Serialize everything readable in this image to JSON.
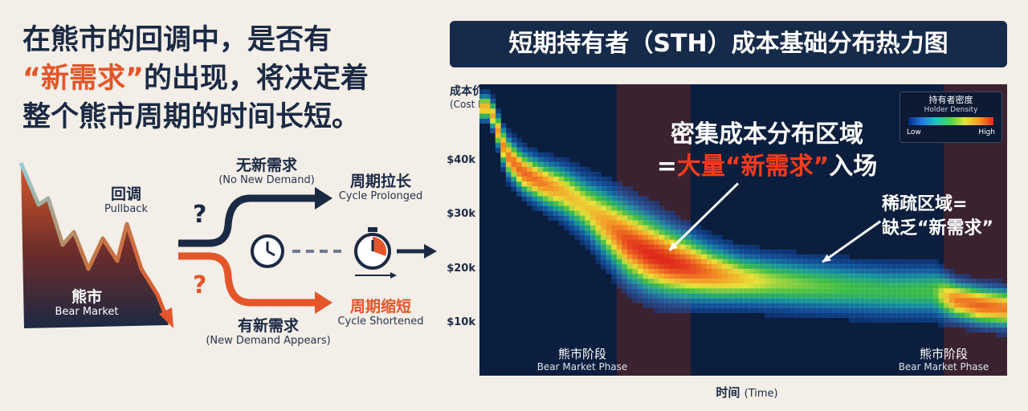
{
  "headline": {
    "line1": "在熊市的回调中，是否有",
    "line2_quote": "“新需求”",
    "line2_rest": "的出现，将决定着",
    "line3": "整个熊市周期的时间长短。"
  },
  "diagram": {
    "pullback_zh": "回调",
    "pullback_en": "Pullback",
    "bear_zh": "熊市",
    "bear_en": "Bear Market",
    "no_demand_zh": "无新需求",
    "no_demand_en": "(No New Demand)",
    "prolonged_zh": "周期拉长",
    "prolonged_en": "Cycle Prolonged",
    "new_demand_zh": "有新需求",
    "new_demand_en": "(New Demand Appears)",
    "shortened_zh": "周期缩短",
    "shortened_en": "Cycle Shortened",
    "question_mark": "?",
    "colors": {
      "navy": "#1b2a44",
      "orange": "#e4552a"
    },
    "icons": [
      "clock-icon",
      "stopwatch-icon"
    ]
  },
  "chart_data": {
    "type": "heatmap",
    "title": "短期持有者（STH）成本基础分布热力图",
    "ylabel_zh": "成本价格",
    "ylabel_en": "(Cost Price)",
    "xlabel_zh": "时间",
    "xlabel_en": "(Time)",
    "y_ticks": [
      "$40k",
      "$30k",
      "$20k",
      "$10k"
    ],
    "y_tick_values": [
      40000,
      30000,
      20000,
      10000
    ],
    "ylim": [
      0,
      50000
    ],
    "x_range": [
      0,
      100
    ],
    "legend": {
      "title_zh": "持有者密度",
      "title_en": "Holder Density",
      "low": "Low",
      "high": "High",
      "position": "top-right"
    },
    "phases": [
      {
        "label_zh": "熊市阶段",
        "label_en": "Bear Market Phase",
        "start": 26,
        "end": 40
      },
      {
        "label_zh": "熊市阶段",
        "label_en": "Bear Market Phase",
        "start": 88,
        "end": 100
      }
    ],
    "density_ridge": [
      {
        "x": 2,
        "center": 46000,
        "spread": 2000,
        "peak": 0.75
      },
      {
        "x": 5,
        "center": 38000,
        "spread": 3000,
        "peak": 0.85
      },
      {
        "x": 8,
        "center": 35000,
        "spread": 3200,
        "peak": 0.9
      },
      {
        "x": 12,
        "center": 33000,
        "spread": 3500,
        "peak": 0.85
      },
      {
        "x": 16,
        "center": 31500,
        "spread": 4000,
        "peak": 0.75
      },
      {
        "x": 20,
        "center": 29000,
        "spread": 4500,
        "peak": 0.7
      },
      {
        "x": 24,
        "center": 26000,
        "spread": 5500,
        "peak": 0.8
      },
      {
        "x": 28,
        "center": 23000,
        "spread": 6000,
        "peak": 0.95
      },
      {
        "x": 32,
        "center": 21000,
        "spread": 6000,
        "peak": 1.0
      },
      {
        "x": 36,
        "center": 19500,
        "spread": 5500,
        "peak": 1.0
      },
      {
        "x": 40,
        "center": 18500,
        "spread": 5000,
        "peak": 0.95
      },
      {
        "x": 44,
        "center": 17500,
        "spread": 4500,
        "peak": 0.85
      },
      {
        "x": 50,
        "center": 16500,
        "spread": 4000,
        "peak": 0.7
      },
      {
        "x": 56,
        "center": 16000,
        "spread": 4000,
        "peak": 0.6
      },
      {
        "x": 62,
        "center": 15500,
        "spread": 4000,
        "peak": 0.55
      },
      {
        "x": 70,
        "center": 15000,
        "spread": 4000,
        "peak": 0.5
      },
      {
        "x": 78,
        "center": 14500,
        "spread": 4000,
        "peak": 0.48
      },
      {
        "x": 86,
        "center": 14500,
        "spread": 4000,
        "peak": 0.5
      },
      {
        "x": 90,
        "center": 13000,
        "spread": 3000,
        "peak": 0.85
      },
      {
        "x": 95,
        "center": 12000,
        "spread": 3000,
        "peak": 0.9
      },
      {
        "x": 100,
        "center": 11500,
        "spread": 3000,
        "peak": 0.85
      }
    ],
    "annotations": {
      "dense_zh_line1": "密集成本分布区域",
      "dense_prefix": "=",
      "dense_red": "大量“新需求”",
      "dense_suffix": "入场",
      "sparse_line1": "稀疏区域=",
      "sparse_line2": "缺乏“新需求”"
    },
    "colors": {
      "background": "#0b1e3d",
      "phase_band": "#3b2230",
      "hot": "#e0281c"
    }
  }
}
